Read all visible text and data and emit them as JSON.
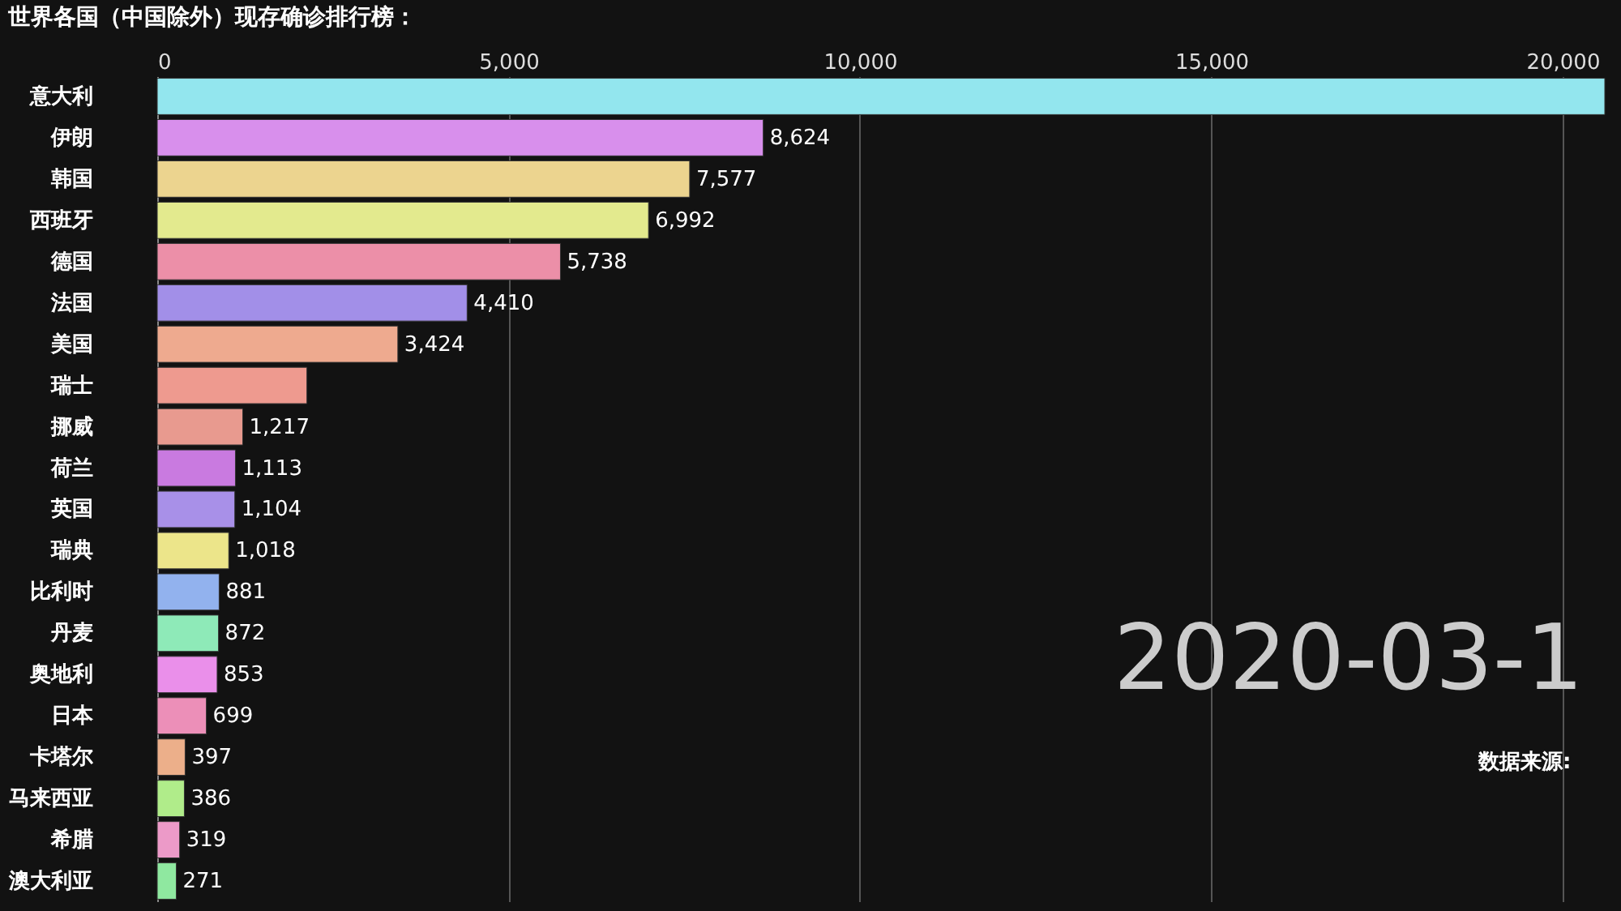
{
  "chart_data": {
    "type": "bar",
    "orientation": "horizontal",
    "title": "世界各国（中国除外）现存确诊排行榜：",
    "categories": [
      "意大利",
      "伊朗",
      "韩国",
      "西班牙",
      "德国",
      "法国",
      "美国",
      "瑞士",
      "挪威",
      "荷兰",
      "英国",
      "瑞典",
      "比利时",
      "丹麦",
      "奥地利",
      "日本",
      "卡塔尔",
      "马来西亚",
      "希腊",
      "澳大利亚"
    ],
    "values": [
      20600,
      8624,
      7577,
      6992,
      5738,
      4410,
      3424,
      2130,
      1217,
      1113,
      1104,
      1018,
      881,
      872,
      853,
      699,
      397,
      386,
      319,
      271
    ],
    "colors": [
      "#93e6ee",
      "#d88fec",
      "#ecd48f",
      "#e3ea8e",
      "#ec8fa8",
      "#a28fe8",
      "#eeaa8f",
      "#ee9a8f",
      "#e89a8f",
      "#c97ae0",
      "#a890e8",
      "#ece58a",
      "#92b2ee",
      "#8eeab8",
      "#ea8fea",
      "#ec8fb8",
      "#ecaf8a",
      "#b0ec8a",
      "#ec9ac8",
      "#8fe8a0"
    ],
    "value_labels": [
      null,
      "8,624",
      "7,577",
      "6,992",
      "5,738",
      "4,410",
      "3,424",
      null,
      "1,217",
      "1,113",
      "1,104",
      "1,018",
      "881",
      "872",
      "853",
      "699",
      "397",
      "386",
      "319",
      "271"
    ],
    "xlim": [
      0,
      20600
    ],
    "xticks": [
      0,
      {
        "value": 5000,
        "label": "5,000"
      },
      {
        "value": 10000,
        "label": "10,000"
      },
      {
        "value": 15000,
        "label": "15,000"
      },
      {
        "value": 20000,
        "label": "20,000"
      }
    ],
    "grid": "x",
    "annotations": [
      "2020-03-1",
      "数据来源:"
    ]
  }
}
